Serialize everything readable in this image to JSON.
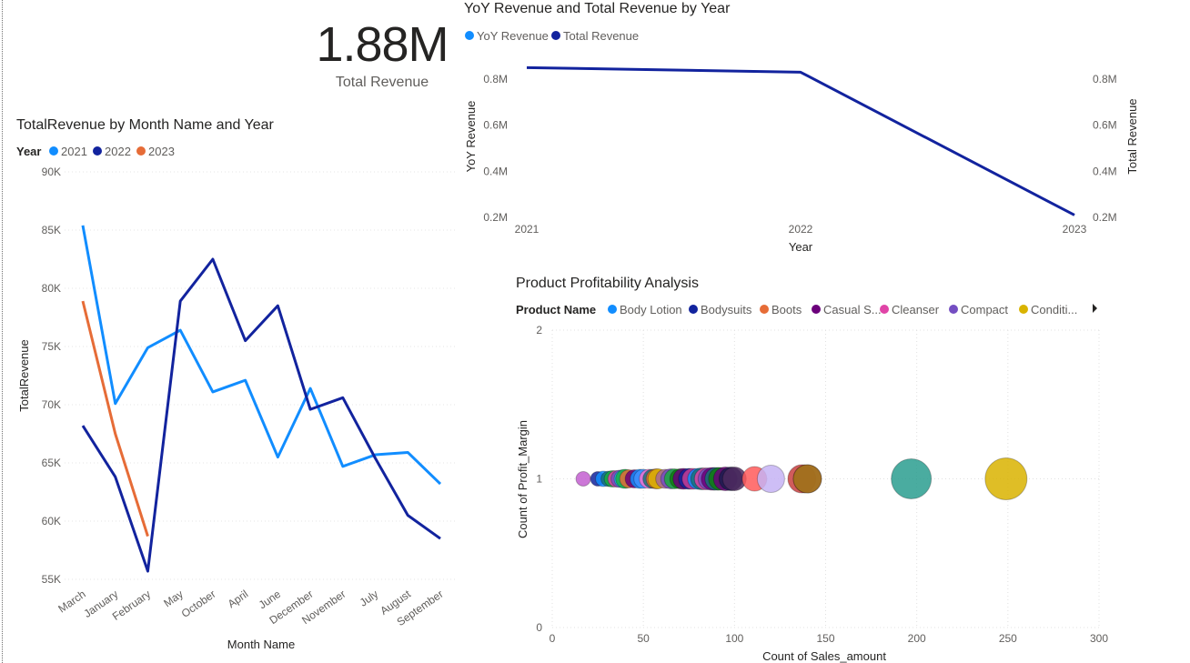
{
  "kpi": {
    "value": "1.88M",
    "label": "Total Revenue"
  },
  "chart_data": [
    {
      "type": "line",
      "title": "TotalRevenue by Month Name and Year",
      "legend_title": "Year",
      "legend_position": "top-left",
      "xlabel": "Month Name",
      "ylabel": "TotalRevenue",
      "categories": [
        "March",
        "January",
        "February",
        "May",
        "October",
        "April",
        "June",
        "December",
        "November",
        "July",
        "August",
        "September"
      ],
      "ylim": [
        55000,
        90000
      ],
      "yticks": [
        {
          "v": 55000,
          "label": "55K"
        },
        {
          "v": 60000,
          "label": "60K"
        },
        {
          "v": 65000,
          "label": "65K"
        },
        {
          "v": 70000,
          "label": "70K"
        },
        {
          "v": 75000,
          "label": "75K"
        },
        {
          "v": 80000,
          "label": "80K"
        },
        {
          "v": 85000,
          "label": "85K"
        },
        {
          "v": 90000,
          "label": "90K"
        }
      ],
      "grid": true,
      "series": [
        {
          "name": "2021",
          "color": "#118DFF",
          "values": [
            85400,
            70100,
            74900,
            76400,
            71100,
            72100,
            65500,
            71400,
            64700,
            65700,
            65900,
            63200
          ]
        },
        {
          "name": "2022",
          "color": "#12239E",
          "values": [
            68200,
            63800,
            55700,
            78900,
            82500,
            75500,
            78500,
            69600,
            70600,
            65400,
            60500,
            58500
          ]
        },
        {
          "name": "2023",
          "color": "#E66C37",
          "values": [
            78900,
            67500,
            58700,
            null,
            null,
            null,
            null,
            null,
            null,
            null,
            null,
            null
          ]
        }
      ]
    },
    {
      "type": "line",
      "title": "YoY Revenue and Total Revenue by Year",
      "legend_position": "top-left",
      "xlabel": "Year",
      "ylabel": "YoY Revenue",
      "y2label": "Total Revenue",
      "categories": [
        "2021",
        "2022",
        "2023"
      ],
      "ylim": [
        0.2,
        0.8
      ],
      "yticks": [
        {
          "v": 0.2,
          "label": "0.2M"
        },
        {
          "v": 0.4,
          "label": "0.4M"
        },
        {
          "v": 0.6,
          "label": "0.6M"
        },
        {
          "v": 0.8,
          "label": "0.8M"
        }
      ],
      "legend": [
        {
          "name": "YoY Revenue",
          "color": "#118DFF"
        },
        {
          "name": "Total Revenue",
          "color": "#12239E"
        }
      ],
      "series": [
        {
          "name": "Total Revenue",
          "color": "#12239E",
          "values": [
            0.85,
            0.83,
            0.21
          ]
        }
      ]
    },
    {
      "type": "scatter",
      "title": "Product Profitability Analysis",
      "legend_title": "Product Name",
      "legend_position": "top-left",
      "xlabel": "Count of Sales_amount",
      "ylabel": "Count of Profit_Margin",
      "xlim": [
        0,
        300
      ],
      "ylim": [
        0,
        2
      ],
      "xticks": [
        0,
        50,
        100,
        150,
        200,
        250,
        300
      ],
      "yticks": [
        0,
        1,
        2
      ],
      "grid": true,
      "legend": [
        {
          "name": "Body Lotion",
          "color": "#118DFF"
        },
        {
          "name": "Bodysuits",
          "color": "#12239E"
        },
        {
          "name": "Boots",
          "color": "#E66C37"
        },
        {
          "name": "Casual S...",
          "color": "#6B007B"
        },
        {
          "name": "Cleanser",
          "color": "#E044A7"
        },
        {
          "name": "Compact",
          "color": "#744EC2"
        },
        {
          "name": "Conditi...",
          "color": "#D9B300"
        }
      ],
      "points": [
        {
          "x": 17,
          "y": 1,
          "size": 16,
          "color": "#C35FD0"
        },
        {
          "x": 25,
          "y": 1,
          "size": 16,
          "color": "#12239E"
        },
        {
          "x": 28,
          "y": 1,
          "size": 17,
          "color": "#118DFF"
        },
        {
          "x": 31,
          "y": 1,
          "size": 17,
          "color": "#197278"
        },
        {
          "x": 33,
          "y": 1,
          "size": 18,
          "color": "#1AAB40"
        },
        {
          "x": 35,
          "y": 1,
          "size": 18,
          "color": "#E044A7"
        },
        {
          "x": 37,
          "y": 1,
          "size": 19,
          "color": "#744EC2"
        },
        {
          "x": 39,
          "y": 1,
          "size": 20,
          "color": "#15C6F4"
        },
        {
          "x": 40,
          "y": 1,
          "size": 21,
          "color": "#1AAB40"
        },
        {
          "x": 42,
          "y": 1,
          "size": 20,
          "color": "#E66C37"
        },
        {
          "x": 45,
          "y": 1,
          "size": 20,
          "color": "#6B007B"
        },
        {
          "x": 48,
          "y": 1,
          "size": 21,
          "color": "#118DFF"
        },
        {
          "x": 50,
          "y": 1,
          "size": 21,
          "color": "#4092FF"
        },
        {
          "x": 53,
          "y": 1,
          "size": 21,
          "color": "#F472D0"
        },
        {
          "x": 55,
          "y": 1,
          "size": 21,
          "color": "#197278"
        },
        {
          "x": 57,
          "y": 1,
          "size": 22,
          "color": "#E66C37"
        },
        {
          "x": 58,
          "y": 1,
          "size": 22,
          "color": "#D9B300"
        },
        {
          "x": 62,
          "y": 1,
          "size": 21,
          "color": "#A66999"
        },
        {
          "x": 65,
          "y": 1,
          "size": 22,
          "color": "#744EC2"
        },
        {
          "x": 67,
          "y": 1,
          "size": 22,
          "color": "#1AAB40"
        },
        {
          "x": 70,
          "y": 1,
          "size": 22,
          "color": "#107C10"
        },
        {
          "x": 72,
          "y": 1,
          "size": 23,
          "color": "#6B007B"
        },
        {
          "x": 75,
          "y": 1,
          "size": 23,
          "color": "#12239E"
        },
        {
          "x": 77,
          "y": 1,
          "size": 23,
          "color": "#C83D95"
        },
        {
          "x": 80,
          "y": 1,
          "size": 23,
          "color": "#118DFF"
        },
        {
          "x": 82,
          "y": 1,
          "size": 24,
          "color": "#197278"
        },
        {
          "x": 84,
          "y": 1,
          "size": 24,
          "color": "#E044A7"
        },
        {
          "x": 86,
          "y": 1,
          "size": 24,
          "color": "#744EC2"
        },
        {
          "x": 88,
          "y": 1,
          "size": 25,
          "color": "#6B007B"
        },
        {
          "x": 90,
          "y": 1,
          "size": 25,
          "color": "#197278"
        },
        {
          "x": 92,
          "y": 1,
          "size": 25,
          "color": "#107C10"
        },
        {
          "x": 95,
          "y": 1,
          "size": 26,
          "color": "#6B007B"
        },
        {
          "x": 98,
          "y": 1,
          "size": 26,
          "color": "#1B1D4F"
        },
        {
          "x": 100,
          "y": 1,
          "size": 26,
          "color": "#4E2A5F"
        },
        {
          "x": 111,
          "y": 1,
          "size": 27,
          "color": "#FF5A5A"
        },
        {
          "x": 120,
          "y": 1,
          "size": 30,
          "color": "#C5B3F5"
        },
        {
          "x": 137,
          "y": 1,
          "size": 31,
          "color": "#C94040"
        },
        {
          "x": 140,
          "y": 1,
          "size": 31,
          "color": "#B0007A"
        },
        {
          "x": 140,
          "y": 1,
          "size": 31,
          "color": "#A08010"
        },
        {
          "x": 197,
          "y": 1,
          "size": 44,
          "color": "#2A9D8F"
        },
        {
          "x": 249,
          "y": 1,
          "size": 46,
          "color": "#D9B300"
        }
      ]
    }
  ]
}
